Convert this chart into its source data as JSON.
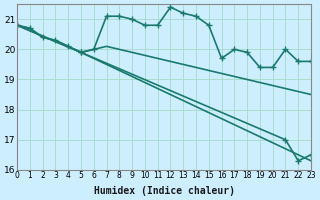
{
  "xlabel": "Humidex (Indice chaleur)",
  "ylabel": "",
  "background_color": "#cceeff",
  "grid_color": "#aaddcc",
  "line_color": "#1a7a6e",
  "xlim": [
    0,
    23
  ],
  "ylim": [
    16,
    21.5
  ],
  "yticks": [
    16,
    17,
    18,
    19,
    20,
    21
  ],
  "xticks": [
    0,
    1,
    2,
    3,
    4,
    5,
    6,
    7,
    8,
    9,
    10,
    11,
    12,
    13,
    14,
    15,
    16,
    17,
    18,
    19,
    20,
    21,
    22,
    23
  ],
  "line1_x": [
    0,
    1,
    2,
    3,
    4,
    5,
    6,
    7,
    8,
    9,
    10,
    11,
    12,
    13,
    14,
    15,
    16,
    17,
    18,
    19,
    20,
    21,
    22,
    23
  ],
  "line1_y": [
    20.8,
    20.7,
    20.4,
    20.3,
    20.1,
    19.9,
    20.0,
    21.1,
    21.1,
    21.0,
    20.8,
    20.8,
    21.4,
    21.2,
    21.1,
    20.8,
    19.7,
    20.0,
    19.9,
    19.4,
    19.4,
    20.0,
    19.6,
    19.6
  ],
  "line2_x": [
    0,
    1,
    2,
    3,
    4,
    5,
    6,
    7,
    8,
    9,
    10,
    11,
    12,
    13,
    14,
    15,
    16,
    17,
    18,
    19,
    20,
    21,
    22,
    23
  ],
  "line2_y": [
    20.8,
    20.7,
    20.4,
    20.3,
    20.1,
    19.9,
    20.0,
    20.1,
    20.0,
    19.9,
    19.8,
    19.7,
    19.6,
    19.5,
    19.4,
    19.3,
    19.2,
    19.1,
    19.0,
    18.9,
    18.8,
    18.7,
    18.6,
    18.5
  ],
  "line3_x": [
    0,
    5,
    23
  ],
  "line3_y": [
    20.8,
    19.9,
    16.3
  ],
  "line4_x": [
    0,
    5,
    21,
    22,
    23
  ],
  "line4_y": [
    20.8,
    19.9,
    17.0,
    16.3,
    16.5
  ],
  "marker_size": 3,
  "line_width": 1.2
}
